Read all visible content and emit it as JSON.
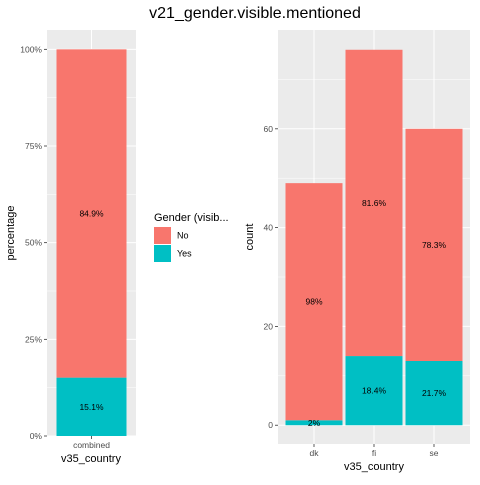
{
  "title": "v21_gender.visible.mentioned",
  "legend": {
    "title": "Gender (visib...",
    "placement": "center",
    "entries": [
      {
        "label": "No",
        "color": "#F8766D"
      },
      {
        "label": "Yes",
        "color": "#00BFC4"
      }
    ]
  },
  "colors": {
    "no": "#F8766D",
    "yes": "#00BFC4",
    "panel": "#EBEBEB",
    "grid": "#FFFFFF"
  },
  "chart_data": [
    {
      "type": "bar",
      "stacked": true,
      "xlabel": "v35_country",
      "ylabel": "percentage",
      "categories": [
        "combined"
      ],
      "ylim": [
        0,
        1.05
      ],
      "yticks": [
        0,
        0.25,
        0.5,
        0.75,
        1.0
      ],
      "ytick_labels": [
        "0%",
        "25%",
        "50%",
        "75%",
        "100%"
      ],
      "series": [
        {
          "name": "Yes",
          "values": [
            0.151
          ],
          "labels": [
            "15.1%"
          ]
        },
        {
          "name": "No",
          "values": [
            0.849
          ],
          "labels": [
            "84.9%"
          ]
        }
      ],
      "grid": true
    },
    {
      "type": "bar",
      "stacked": true,
      "xlabel": "v35_country",
      "ylabel": "count",
      "categories": [
        "dk",
        "fi",
        "se"
      ],
      "ylim": [
        -3.8,
        80
      ],
      "yticks": [
        0,
        20,
        40,
        60
      ],
      "ytick_labels": [
        "0",
        "20",
        "40",
        "60"
      ],
      "series": [
        {
          "name": "Yes",
          "values": [
            1,
            14,
            13
          ],
          "labels": [
            "2%",
            "18.4%",
            "21.7%"
          ]
        },
        {
          "name": "No",
          "values": [
            48,
            62,
            47
          ],
          "labels": [
            "98%",
            "81.6%",
            "78.3%"
          ]
        }
      ],
      "grid": true
    }
  ]
}
